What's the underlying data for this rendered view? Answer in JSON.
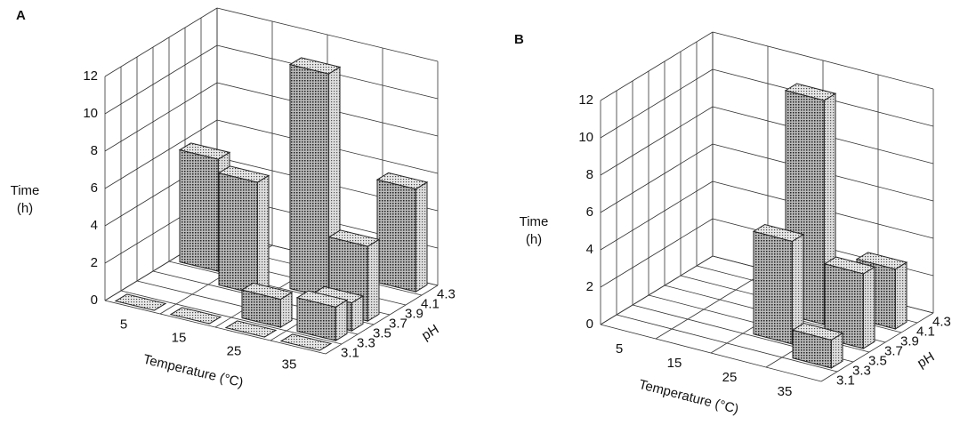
{
  "chart_data": [
    {
      "type": "bar3d",
      "panel_label": "A",
      "categories": [
        "5",
        "15",
        "25",
        "35"
      ],
      "xlabel": "Temperature (°C)",
      "ylabel": "pH",
      "zlabel": [
        "Time",
        "(h)"
      ],
      "zlim": [
        0,
        12
      ],
      "zticks": [
        0,
        2,
        4,
        6,
        8,
        10,
        12
      ],
      "series": [
        {
          "name": "3.1",
          "values": [
            0,
            0,
            0,
            0
          ]
        },
        {
          "name": "3.3",
          "values": [
            null,
            null,
            1.5,
            1.8
          ]
        },
        {
          "name": "3.5",
          "values": [
            null,
            null,
            null,
            1.5
          ]
        },
        {
          "name": "3.7",
          "values": [
            null,
            6,
            null,
            4
          ]
        },
        {
          "name": "3.9",
          "values": [
            6,
            null,
            12,
            null
          ]
        },
        {
          "name": "4.1",
          "values": [
            null,
            null,
            null,
            null
          ]
        },
        {
          "name": "4.3",
          "values": [
            null,
            null,
            null,
            5.5
          ]
        }
      ]
    },
    {
      "type": "bar3d",
      "panel_label": "B",
      "categories": [
        "5",
        "15",
        "25",
        "35"
      ],
      "xlabel": "Temperature (°C)",
      "ylabel": "pH",
      "zlabel": [
        "Time",
        "(h)"
      ],
      "zlim": [
        0,
        12
      ],
      "zticks": [
        0,
        2,
        4,
        6,
        8,
        10,
        12
      ],
      "series": [
        {
          "name": "3.1",
          "values": [
            null,
            null,
            null,
            null
          ]
        },
        {
          "name": "3.3",
          "values": [
            null,
            null,
            null,
            1.5
          ]
        },
        {
          "name": "3.5",
          "values": [
            null,
            null,
            5.5,
            null
          ]
        },
        {
          "name": "3.7",
          "values": [
            null,
            null,
            null,
            4
          ]
        },
        {
          "name": "3.9",
          "values": [
            null,
            null,
            12,
            null
          ]
        },
        {
          "name": "4.1",
          "values": [
            null,
            null,
            null,
            3.2
          ]
        },
        {
          "name": "4.3",
          "values": [
            null,
            null,
            null,
            null
          ]
        }
      ]
    }
  ]
}
